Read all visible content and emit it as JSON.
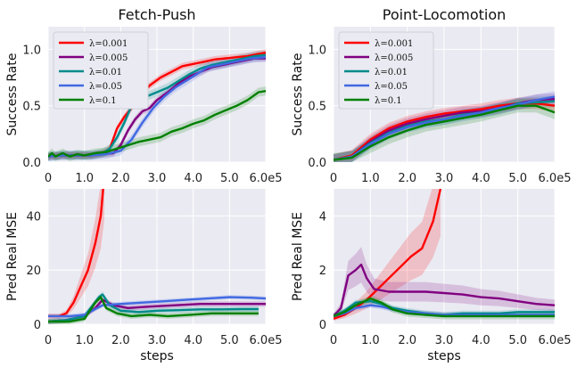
{
  "chart_data": [
    {
      "id": "fetch-sr",
      "type": "line",
      "title": "Fetch-Push",
      "xlabel": "",
      "ylabel": "Success Rate",
      "xlim": [
        0,
        600000
      ],
      "ylim": [
        0,
        1.2
      ],
      "xticks": [
        0,
        100000,
        200000,
        300000,
        400000,
        500000,
        600000
      ],
      "xtick_labels": [
        "0",
        "1.0",
        "2.0",
        "3.0",
        "4.0",
        "5.0",
        "6.0e5"
      ],
      "yticks": [
        0,
        0.5,
        1.0
      ],
      "ytick_labels": [
        "0.0",
        "0.5",
        "1.0"
      ],
      "legend": "top-left",
      "series": [
        {
          "name": "λ=0.001",
          "color": "#ff0000",
          "band": 0.03,
          "x": [
            0,
            40000,
            80000,
            120000,
            150000,
            170000,
            190000,
            210000,
            230000,
            250000,
            280000,
            310000,
            340000,
            370000,
            400000,
            430000,
            460000,
            490000,
            520000,
            550000,
            580000,
            600000
          ],
          "y": [
            0.05,
            0.06,
            0.06,
            0.06,
            0.08,
            0.12,
            0.3,
            0.4,
            0.48,
            0.58,
            0.68,
            0.75,
            0.8,
            0.85,
            0.87,
            0.89,
            0.91,
            0.92,
            0.93,
            0.94,
            0.96,
            0.97
          ]
        },
        {
          "name": "λ=0.005",
          "color": "#800080",
          "band": 0.03,
          "x": [
            0,
            40000,
            80000,
            120000,
            150000,
            180000,
            200000,
            220000,
            240000,
            260000,
            280000,
            300000,
            330000,
            360000,
            390000,
            420000,
            450000,
            480000,
            510000,
            540000,
            570000,
            600000
          ],
          "y": [
            0.05,
            0.06,
            0.06,
            0.06,
            0.07,
            0.08,
            0.15,
            0.28,
            0.38,
            0.45,
            0.48,
            0.55,
            0.62,
            0.7,
            0.76,
            0.8,
            0.84,
            0.86,
            0.88,
            0.9,
            0.92,
            0.92
          ]
        },
        {
          "name": "λ=0.01",
          "color": "#008b8b",
          "band": 0.04,
          "x": [
            0,
            40000,
            80000,
            120000,
            150000,
            170000,
            190000,
            210000,
            230000,
            250000,
            270000,
            300000,
            330000,
            360000,
            390000,
            420000,
            450000,
            480000,
            510000,
            540000,
            570000,
            600000
          ],
          "y": [
            0.05,
            0.06,
            0.06,
            0.06,
            0.08,
            0.12,
            0.22,
            0.35,
            0.5,
            0.56,
            0.58,
            0.62,
            0.66,
            0.72,
            0.78,
            0.83,
            0.86,
            0.88,
            0.9,
            0.92,
            0.94,
            0.95
          ]
        },
        {
          "name": "λ=0.05",
          "color": "#4169e1",
          "band": 0.04,
          "x": [
            0,
            40000,
            80000,
            120000,
            160000,
            200000,
            230000,
            260000,
            290000,
            320000,
            350000,
            380000,
            410000,
            440000,
            470000,
            500000,
            530000,
            560000,
            600000
          ],
          "y": [
            0.05,
            0.06,
            0.06,
            0.06,
            0.07,
            0.1,
            0.2,
            0.35,
            0.48,
            0.58,
            0.66,
            0.72,
            0.78,
            0.84,
            0.86,
            0.88,
            0.9,
            0.92,
            0.93
          ]
        },
        {
          "name": "λ=0.1",
          "color": "#008000",
          "band": 0.04,
          "x": [
            0,
            10000,
            20000,
            40000,
            60000,
            80000,
            100000,
            130000,
            160000,
            190000,
            220000,
            250000,
            280000,
            310000,
            340000,
            370000,
            400000,
            430000,
            460000,
            490000,
            520000,
            550000,
            580000,
            600000
          ],
          "y": [
            0.05,
            0.08,
            0.05,
            0.08,
            0.05,
            0.07,
            0.06,
            0.08,
            0.09,
            0.12,
            0.15,
            0.18,
            0.2,
            0.22,
            0.27,
            0.3,
            0.34,
            0.37,
            0.42,
            0.46,
            0.5,
            0.55,
            0.62,
            0.63
          ]
        }
      ]
    },
    {
      "id": "point-sr",
      "type": "line",
      "title": "Point-Locomotion",
      "xlabel": "",
      "ylabel": "Success Rate",
      "xlim": [
        0,
        600000
      ],
      "ylim": [
        0,
        1.2
      ],
      "xticks": [
        0,
        100000,
        200000,
        300000,
        400000,
        500000,
        600000
      ],
      "xtick_labels": [
        "0",
        "1.0",
        "2.0",
        "3.0",
        "4.0",
        "5.0",
        "6.0e5"
      ],
      "yticks": [
        0,
        0.5,
        1.0
      ],
      "ytick_labels": [
        "0.0",
        "0.5",
        "1.0"
      ],
      "legend": "top-left",
      "series": [
        {
          "name": "λ=0.001",
          "color": "#ff0000",
          "band": 0.05,
          "x": [
            0,
            50000,
            100000,
            150000,
            200000,
            250000,
            300000,
            350000,
            400000,
            450000,
            500000,
            550000,
            600000
          ],
          "y": [
            0.02,
            0.06,
            0.2,
            0.3,
            0.36,
            0.4,
            0.43,
            0.45,
            0.47,
            0.5,
            0.52,
            0.52,
            0.5
          ]
        },
        {
          "name": "λ=0.005",
          "color": "#800080",
          "band": 0.05,
          "x": [
            0,
            50000,
            100000,
            150000,
            200000,
            250000,
            300000,
            350000,
            400000,
            450000,
            500000,
            550000,
            600000
          ],
          "y": [
            0.02,
            0.05,
            0.18,
            0.28,
            0.34,
            0.38,
            0.41,
            0.44,
            0.45,
            0.48,
            0.52,
            0.55,
            0.56
          ]
        },
        {
          "name": "λ=0.01",
          "color": "#008b8b",
          "band": 0.05,
          "x": [
            0,
            50000,
            100000,
            150000,
            200000,
            250000,
            300000,
            350000,
            400000,
            450000,
            500000,
            550000,
            600000
          ],
          "y": [
            0.02,
            0.05,
            0.17,
            0.26,
            0.32,
            0.36,
            0.38,
            0.42,
            0.44,
            0.47,
            0.52,
            0.53,
            0.54
          ]
        },
        {
          "name": "λ=0.05",
          "color": "#4169e1",
          "band": 0.05,
          "x": [
            0,
            50000,
            100000,
            150000,
            200000,
            250000,
            300000,
            350000,
            400000,
            450000,
            500000,
            550000,
            600000
          ],
          "y": [
            0.02,
            0.05,
            0.16,
            0.25,
            0.31,
            0.35,
            0.38,
            0.41,
            0.44,
            0.48,
            0.51,
            0.55,
            0.58
          ]
        },
        {
          "name": "λ=0.1",
          "color": "#008000",
          "band": 0.06,
          "x": [
            0,
            50000,
            100000,
            150000,
            200000,
            250000,
            300000,
            350000,
            400000,
            450000,
            500000,
            550000,
            600000
          ],
          "y": [
            0.02,
            0.04,
            0.14,
            0.22,
            0.28,
            0.33,
            0.36,
            0.39,
            0.42,
            0.46,
            0.5,
            0.5,
            0.44
          ]
        }
      ]
    },
    {
      "id": "fetch-mse",
      "type": "line",
      "title": "",
      "xlabel": "steps",
      "ylabel": "Pred Real MSE",
      "xlim": [
        0,
        600000
      ],
      "ylim": [
        0,
        50
      ],
      "xticks": [
        0,
        100000,
        200000,
        300000,
        400000,
        500000,
        600000
      ],
      "xtick_labels": [
        "0",
        "1.0",
        "2.0",
        "3.0",
        "4.0",
        "5.0",
        "6.0e5"
      ],
      "yticks": [
        0,
        20,
        40
      ],
      "ytick_labels": [
        "0",
        "20",
        "40"
      ],
      "series": [
        {
          "name": "λ=0.001",
          "color": "#ff0000",
          "band_pct": 0.3,
          "x": [
            0,
            30000,
            50000,
            70000,
            90000,
            110000,
            130000,
            145000,
            155000
          ],
          "y": [
            3,
            3,
            4,
            8,
            14,
            20,
            30,
            40,
            55
          ]
        },
        {
          "name": "λ=0.005",
          "color": "#800080",
          "band": 1.0,
          "x": [
            0,
            50000,
            100000,
            130000,
            150000,
            180000,
            220000,
            280000,
            350000,
            420000,
            480000,
            550000,
            600000
          ],
          "y": [
            1,
            1.5,
            3,
            6,
            9,
            7,
            6,
            6.5,
            7,
            7.5,
            7.5,
            7.5,
            7.5
          ]
        },
        {
          "name": "λ=0.01",
          "color": "#008b8b",
          "band": 1.0,
          "x": [
            0,
            50000,
            100000,
            140000,
            150000,
            170000,
            200000,
            250000,
            300000,
            360000,
            420000,
            480000,
            540000,
            580000
          ],
          "y": [
            1,
            1.5,
            3,
            10,
            11,
            7,
            5,
            4.5,
            5,
            5.2,
            5.5,
            5.5,
            5.6,
            5.6
          ]
        },
        {
          "name": "λ=0.05",
          "color": "#4169e1",
          "band": 0.8,
          "x": [
            0,
            60000,
            100000,
            150000,
            200000,
            260000,
            320000,
            380000,
            440000,
            500000,
            560000,
            600000
          ],
          "y": [
            3,
            3,
            3.5,
            7,
            7.5,
            8,
            8.5,
            9,
            9.5,
            10,
            9.8,
            9.5
          ]
        },
        {
          "name": "λ=0.1",
          "color": "#008000",
          "band": 1.0,
          "x": [
            0,
            60000,
            100000,
            130000,
            145000,
            160000,
            190000,
            230000,
            280000,
            330000,
            390000,
            450000,
            520000,
            580000
          ],
          "y": [
            1,
            1,
            2,
            8,
            10,
            6,
            4,
            3,
            3.5,
            3,
            3.5,
            4,
            4,
            4
          ]
        }
      ]
    },
    {
      "id": "point-mse",
      "type": "line",
      "title": "",
      "xlabel": "steps",
      "ylabel": "Pred Real MSE",
      "xlim": [
        0,
        600000
      ],
      "ylim": [
        0,
        5
      ],
      "xticks": [
        0,
        100000,
        200000,
        300000,
        400000,
        500000,
        600000
      ],
      "xtick_labels": [
        "0",
        "1.0",
        "2.0",
        "3.0",
        "4.0",
        "5.0",
        "6.0e5"
      ],
      "yticks": [
        0,
        2,
        4
      ],
      "ytick_labels": [
        "0",
        "2",
        "4"
      ],
      "series": [
        {
          "name": "λ=0.001",
          "color": "#ff0000",
          "band_pct": 0.35,
          "x": [
            0,
            30000,
            60000,
            90000,
            120000,
            150000,
            180000,
            210000,
            240000,
            270000,
            290000
          ],
          "y": [
            0.2,
            0.35,
            0.6,
            0.9,
            1.3,
            1.7,
            2.1,
            2.5,
            2.8,
            3.8,
            5.0
          ]
        },
        {
          "name": "λ=0.005",
          "color": "#800080",
          "band_pct": 0.3,
          "x": [
            0,
            20000,
            40000,
            60000,
            75000,
            90000,
            110000,
            150000,
            200000,
            250000,
            300000,
            350000,
            400000,
            450000,
            500000,
            550000,
            600000
          ],
          "y": [
            0.3,
            0.6,
            1.8,
            2.0,
            2.2,
            1.7,
            1.3,
            1.2,
            1.2,
            1.2,
            1.15,
            1.1,
            1.0,
            0.95,
            0.85,
            0.75,
            0.7
          ]
        },
        {
          "name": "λ=0.01",
          "color": "#008b8b",
          "band": 0.1,
          "x": [
            0,
            30000,
            60000,
            100000,
            130000,
            160000,
            200000,
            250000,
            300000,
            350000,
            400000,
            450000,
            500000,
            550000,
            600000
          ],
          "y": [
            0.3,
            0.5,
            0.8,
            0.85,
            0.75,
            0.6,
            0.5,
            0.4,
            0.35,
            0.4,
            0.4,
            0.4,
            0.45,
            0.45,
            0.45
          ]
        },
        {
          "name": "λ=0.05",
          "color": "#4169e1",
          "band": 0.1,
          "x": [
            0,
            30000,
            60000,
            100000,
            130000,
            160000,
            200000,
            250000,
            300000,
            350000,
            400000,
            450000,
            500000,
            550000,
            600000
          ],
          "y": [
            0.3,
            0.4,
            0.6,
            0.7,
            0.65,
            0.55,
            0.45,
            0.4,
            0.35,
            0.35,
            0.35,
            0.35,
            0.35,
            0.35,
            0.35
          ]
        },
        {
          "name": "λ=0.1",
          "color": "#008000",
          "band": 0.12,
          "x": [
            0,
            30000,
            60000,
            100000,
            130000,
            160000,
            200000,
            250000,
            300000,
            350000,
            400000,
            450000,
            500000,
            550000,
            600000
          ],
          "y": [
            0.3,
            0.45,
            0.7,
            0.95,
            0.8,
            0.55,
            0.4,
            0.35,
            0.3,
            0.3,
            0.3,
            0.3,
            0.3,
            0.3,
            0.3
          ]
        }
      ]
    }
  ]
}
